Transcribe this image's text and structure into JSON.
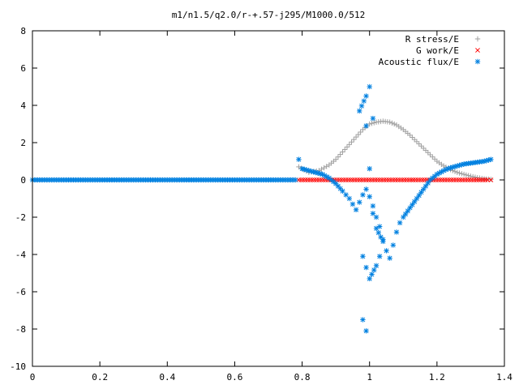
{
  "chart_data": {
    "type": "scatter",
    "title": "m1/n1.5/q2.0/r-+.57-j295/M1000.0/512",
    "xlabel": "",
    "ylabel": "",
    "xlim": [
      0,
      1.4
    ],
    "ylim": [
      -10,
      8
    ],
    "x_ticks": [
      "0",
      "0.2",
      "0.4",
      "0.6",
      "0.8",
      "1",
      "1.2",
      "1.4"
    ],
    "y_ticks": [
      "8",
      "6",
      "4",
      "2",
      "0",
      "-2",
      "-4",
      "-6",
      "-8",
      "-10"
    ],
    "legend_position": "top-right",
    "series": [
      {
        "name": "R stress/E",
        "color": "#a0a0a0",
        "marker": "plus",
        "x": [
          0.79,
          0.82,
          0.85,
          0.88,
          0.9,
          0.92,
          0.94,
          0.96,
          0.98,
          1.0,
          1.02,
          1.04,
          1.06,
          1.08,
          1.1,
          1.12,
          1.14,
          1.16,
          1.18,
          1.2,
          1.22,
          1.24,
          1.26,
          1.28,
          1.3,
          1.32,
          1.34,
          1.36
        ],
        "y": [
          0.7,
          0.4,
          0.5,
          0.8,
          1.1,
          1.5,
          1.9,
          2.3,
          2.7,
          3.0,
          3.1,
          3.15,
          3.1,
          2.95,
          2.7,
          2.4,
          2.05,
          1.7,
          1.35,
          1.0,
          0.75,
          0.55,
          0.4,
          0.3,
          0.2,
          0.12,
          0.06,
          0.03
        ]
      },
      {
        "name": "G work/E",
        "color": "#ff0000",
        "marker": "cross",
        "x": [
          0.79,
          0.81,
          0.83,
          0.85,
          0.87,
          0.89,
          0.91,
          0.93,
          0.95,
          0.97,
          0.99,
          1.01,
          1.03,
          1.05,
          1.07,
          1.09,
          1.11,
          1.13,
          1.15,
          1.17,
          1.19,
          1.21,
          1.23,
          1.25,
          1.27,
          1.29,
          1.31,
          1.33,
          1.35,
          1.36
        ],
        "y": [
          0,
          0,
          0,
          0,
          0,
          0,
          0,
          0,
          0,
          0,
          0,
          0,
          0,
          0,
          0,
          0,
          0,
          0,
          0,
          0,
          0,
          0,
          0,
          0,
          0,
          0,
          0,
          0,
          0,
          0
        ]
      },
      {
        "name": "Acoustic flux/E",
        "color": "#0080e0",
        "marker": "star",
        "x": [
          0.0,
          0.05,
          0.1,
          0.15,
          0.2,
          0.25,
          0.3,
          0.35,
          0.4,
          0.45,
          0.5,
          0.55,
          0.6,
          0.65,
          0.7,
          0.75,
          0.78,
          0.79,
          0.8,
          0.82,
          0.84,
          0.86,
          0.88,
          0.9,
          0.92,
          0.93,
          0.94,
          0.95,
          0.96,
          0.97,
          0.98,
          0.99,
          1.0,
          1.01,
          1.02,
          1.03,
          1.04,
          1.05,
          1.06,
          1.07,
          1.08,
          1.09,
          1.1,
          1.12,
          1.14,
          1.16,
          1.18,
          1.2,
          1.22,
          1.24,
          1.26,
          1.28,
          1.3,
          1.32,
          1.34,
          1.36,
          0.97,
          0.99,
          1.0,
          1.01,
          0.98,
          0.99,
          1.0,
          1.02,
          1.03,
          0.99,
          1.0,
          1.01,
          1.02,
          1.04,
          0.98,
          0.99
        ],
        "y": [
          0,
          0,
          0,
          0,
          0,
          0,
          0,
          0,
          0,
          0,
          0,
          0,
          0,
          0,
          0,
          0,
          0,
          1.1,
          0.6,
          0.5,
          0.4,
          0.3,
          0.1,
          -0.2,
          -0.6,
          -0.8,
          -1.0,
          -1.3,
          -1.6,
          -1.2,
          -0.8,
          -0.5,
          -0.9,
          -1.4,
          -2.0,
          -2.5,
          -3.2,
          -3.8,
          -4.2,
          -3.5,
          -2.8,
          -2.3,
          -2.0,
          -1.5,
          -1.0,
          -0.5,
          0.0,
          0.3,
          0.5,
          0.65,
          0.75,
          0.85,
          0.9,
          0.95,
          1.0,
          1.1,
          3.7,
          4.5,
          5.0,
          3.3,
          -4.1,
          -4.7,
          -5.3,
          -4.6,
          -4.1,
          2.9,
          0.6,
          -1.8,
          -2.6,
          -3.3,
          -7.5,
          -8.1
        ]
      }
    ]
  }
}
